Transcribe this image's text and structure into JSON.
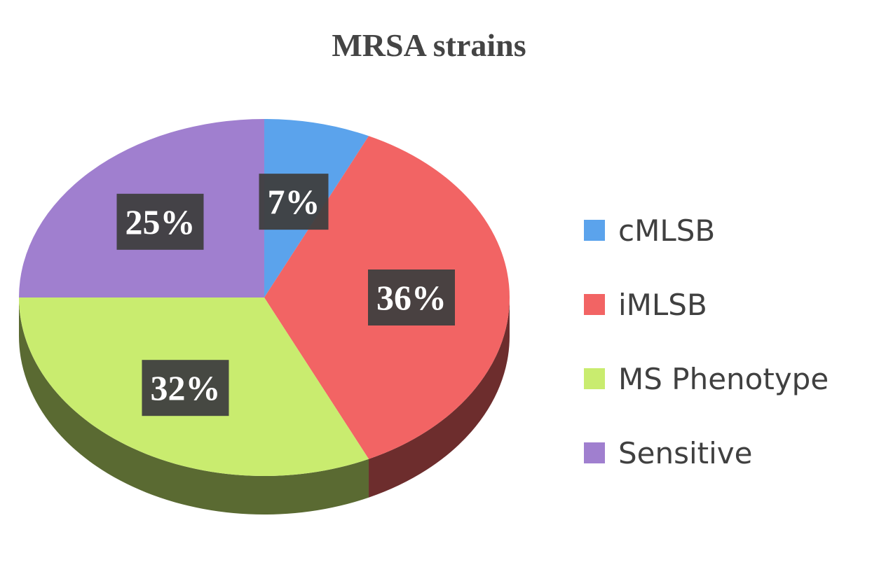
{
  "chart_data": {
    "type": "pie",
    "title": "MRSA strains",
    "categories": [
      "cMLSB",
      "iMLSB",
      "MS Phenotype",
      "Sensitive"
    ],
    "values": [
      7,
      36,
      32,
      25
    ],
    "value_labels": [
      "7%",
      "36%",
      "32%",
      "25%"
    ],
    "colors": [
      "#5ba3ec",
      "#f26464",
      "#c9ec6f",
      "#a07fcf"
    ],
    "legend": "right"
  }
}
